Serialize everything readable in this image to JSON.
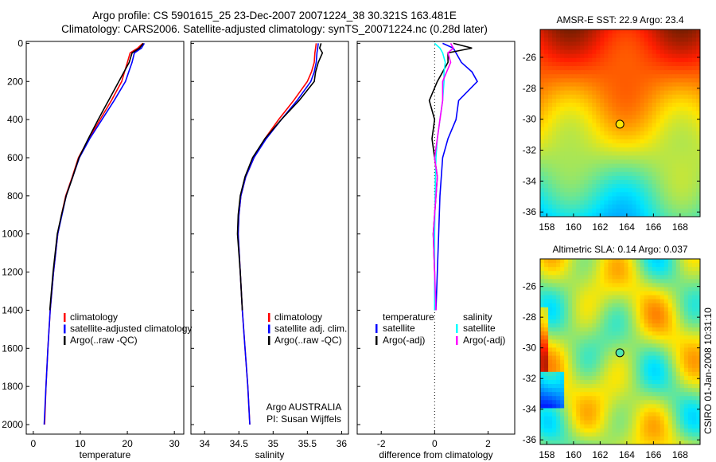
{
  "title_line1": "Argo profile: CS 5901615_25 23-Dec-2007 20071224_38 30.321S 163.481E",
  "title_line2": "Climatology: CARS2006. Satellite-adjusted climatology: synTS_20071224.nc (0.28d later)",
  "footer_vertical": "CSIRO 01-Jan-2008 10:31:10",
  "colors": {
    "clim": "#ff0000",
    "sat": "#0000ff",
    "argo": "#000000",
    "sal_sat": "#00ffff",
    "sal_argo": "#ff00ff"
  },
  "chart_data": [
    {
      "type": "line",
      "xlabel": "temperature",
      "ylabel": "depth",
      "xlim": [
        -1.5,
        32
      ],
      "ylim": [
        2050,
        -10
      ],
      "xticks": [
        0,
        10,
        20,
        30
      ],
      "yticks": [
        0,
        200,
        400,
        600,
        800,
        1000,
        1200,
        1400,
        1600,
        1800,
        2000
      ],
      "depth": [
        0,
        25,
        50,
        100,
        150,
        200,
        300,
        400,
        500,
        600,
        700,
        800,
        900,
        1000,
        1200,
        1400,
        1600,
        1800,
        2000
      ],
      "series": [
        {
          "name": "climatology",
          "color_key": "clim",
          "values": [
            23.3,
            22.2,
            20.6,
            20.0,
            19.4,
            18.8,
            16.6,
            14.2,
            11.8,
            9.6,
            8.3,
            6.9,
            6.0,
            5.2,
            4.3,
            3.6,
            3.1,
            2.7,
            2.4
          ]
        },
        {
          "name": "satellite-adjusted climatology",
          "color_key": "sat",
          "values": [
            23.6,
            23.0,
            21.5,
            21.0,
            20.3,
            19.6,
            17.2,
            14.6,
            12.0,
            9.8,
            8.4,
            7.0,
            6.1,
            5.2,
            4.3,
            3.6,
            3.1,
            2.7,
            2.3
          ]
        },
        {
          "name": "Argo(..raw -QC)",
          "color_key": "argo",
          "values": [
            23.4,
            22.6,
            21.0,
            20.4,
            19.3,
            18.2,
            16.0,
            13.8,
            11.7,
            9.7,
            8.4,
            7.0,
            6.0,
            5.1,
            4.2,
            3.5,
            null,
            null,
            null
          ]
        }
      ],
      "legend": [
        "climatology",
        "satellite-adjusted climatology",
        "Argo(..raw -QC)"
      ]
    },
    {
      "type": "line",
      "xlabel": "salinity",
      "xlim": [
        33.8,
        36.1
      ],
      "ylim": [
        2050,
        -10
      ],
      "xticks": [
        34,
        34.5,
        35,
        35.5,
        36
      ],
      "xticklabels": [
        "34",
        "34.5",
        "35",
        "35.5",
        "36"
      ],
      "depth": [
        0,
        25,
        50,
        100,
        150,
        200,
        300,
        400,
        500,
        600,
        700,
        800,
        900,
        1000,
        1200,
        1400,
        1600,
        1800,
        2000
      ],
      "series": [
        {
          "name": "climatology",
          "color_key": "clim",
          "values": [
            35.63,
            35.62,
            35.61,
            35.6,
            35.56,
            35.5,
            35.3,
            35.08,
            34.88,
            34.72,
            34.6,
            34.53,
            34.5,
            34.49,
            34.52,
            34.55,
            34.59,
            34.63,
            34.66
          ]
        },
        {
          "name": "satellite adj. clim.",
          "color_key": "sat",
          "values": [
            35.66,
            35.65,
            35.64,
            35.63,
            35.6,
            35.55,
            35.35,
            35.12,
            34.9,
            34.72,
            34.6,
            34.53,
            34.5,
            34.49,
            34.52,
            34.55,
            34.59,
            34.63,
            34.66
          ]
        },
        {
          "name": "Argo(..raw -QC)",
          "color_key": "argo",
          "values": [
            35.7,
            35.68,
            35.72,
            35.66,
            35.62,
            35.6,
            35.38,
            35.12,
            34.88,
            34.7,
            34.59,
            34.52,
            34.49,
            34.48,
            34.52,
            34.55,
            null,
            null,
            null
          ]
        }
      ],
      "legend": [
        "climatology",
        "satellite adj. clim.",
        "Argo(..raw -QC)"
      ],
      "annotation": [
        "Argo AUSTRALIA",
        "PI: Susan Wijffels"
      ]
    },
    {
      "type": "line",
      "xlabel": "difference from climatology",
      "xlim": [
        -2.9,
        3.0
      ],
      "ylim": [
        2050,
        -10
      ],
      "xticks": [
        -2,
        0,
        2
      ],
      "depth": [
        0,
        25,
        50,
        100,
        150,
        200,
        300,
        400,
        500,
        600,
        700,
        800,
        1000,
        1200,
        1400
      ],
      "series": [
        {
          "name": "temperature satellite",
          "color_key": "sat",
          "values": [
            0.3,
            0.7,
            0.8,
            1.0,
            1.4,
            1.6,
            0.9,
            0.8,
            0.5,
            0.3,
            0.25,
            0.2,
            0.15,
            0.1,
            0.05
          ]
        },
        {
          "name": "temperature Argo(-adj)",
          "color_key": "argo",
          "values": [
            0.7,
            1.4,
            0.5,
            0.5,
            0.3,
            0.1,
            -0.2,
            0.0,
            -0.1,
            0.0,
            0.1,
            0.05,
            -0.05,
            0.0,
            0.0
          ]
        },
        {
          "name": "salinity satellite",
          "color_key": "sal_sat",
          "values": [
            0.0,
            0.2,
            0.3,
            0.4,
            0.35,
            0.35,
            0.3,
            0.2,
            0.1,
            0.05,
            0.03,
            0.02,
            0.0,
            0.0,
            0.0
          ]
        },
        {
          "name": "salinity Argo(-adj)",
          "color_key": "sal_argo",
          "values": [
            0.6,
            0.7,
            0.5,
            0.6,
            0.45,
            0.3,
            0.3,
            0.2,
            0.1,
            0.0,
            0.1,
            0.05,
            -0.05,
            0.0,
            0.05
          ]
        }
      ],
      "legend_headers": [
        "temperature",
        "salinity"
      ],
      "legend": [
        "satellite",
        "Argo(-adj)",
        "satellite",
        "Argo(-adj)"
      ]
    },
    {
      "type": "heatmap",
      "title": "AMSR-E SST: 22.9 Argo: 23.4",
      "xlim": [
        157.5,
        169.5
      ],
      "ylim": [
        -36.3,
        -24.2
      ],
      "xticks": [
        158,
        160,
        162,
        164,
        166,
        168
      ],
      "yticks": [
        -26,
        -28,
        -30,
        -32,
        -34,
        -36
      ],
      "argo_position": [
        163.481,
        -30.321
      ]
    },
    {
      "type": "heatmap",
      "title": "Altimetric SLA: 0.14 Argo: 0.037",
      "xlim": [
        157.5,
        169.5
      ],
      "ylim": [
        -36.3,
        -24.2
      ],
      "xticks": [
        158,
        160,
        162,
        164,
        166,
        168
      ],
      "yticks": [
        -26,
        -28,
        -30,
        -32,
        -34,
        -36
      ],
      "argo_position": [
        163.481,
        -30.321
      ]
    }
  ]
}
